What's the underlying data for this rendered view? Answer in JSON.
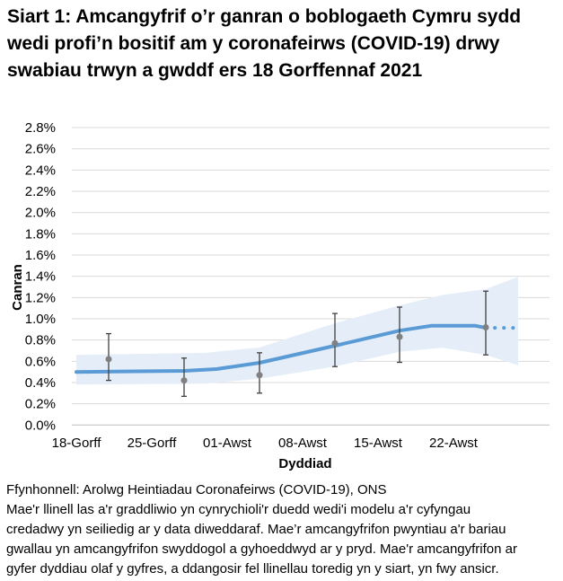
{
  "title": "Siart 1: Amcangyfrif o’r ganran o boblogaeth Cymru sydd wedi profi’n bositif am y coronafeirws (COVID-19) drwy swabiau trwyn a gwddf ers 18 Gorffennaf 2021",
  "footer": {
    "source": "Ffynhonnell: Arolwg Heintiadau Coronafeirws (COVID-19), ONS",
    "note_lines": [
      "Mae'r llinell las a'r graddliwio yn cynrychioli'r duedd wedi'i modelu a'r cyfyngau",
      "credadwy yn seiliedig ar y data diweddaraf. Mae’r amcangyfrifon pwyntiau a'r bariau",
      "gwallau yn amcangyfrifon swyddogol a gyhoeddwyd ar y pryd. Mae'r amcangyfrifon ar",
      "gyfer dyddiau olaf y gyfres, a ddangosir fel llinellau toredig yn y siart, yn fwy ansicr."
    ]
  },
  "chart_data": {
    "type": "line",
    "xlabel": "Dyddiad",
    "ylabel": "Canran",
    "ylim": [
      0,
      2.8
    ],
    "yticks": [
      "0.0%",
      "0.2%",
      "0.4%",
      "0.6%",
      "0.8%",
      "1.0%",
      "1.2%",
      "1.4%",
      "1.6%",
      "1.8%",
      "2.0%",
      "2.2%",
      "2.4%",
      "2.6%",
      "2.8%"
    ],
    "xlim": [
      "2021-07-18",
      "2021-08-28"
    ],
    "xticks": [
      {
        "date": "2021-07-18",
        "label": "18-Gorff"
      },
      {
        "date": "2021-07-25",
        "label": "25-Gorff"
      },
      {
        "date": "2021-08-01",
        "label": "01-Awst"
      },
      {
        "date": "2021-08-08",
        "label": "08-Awst"
      },
      {
        "date": "2021-08-15",
        "label": "15-Awst"
      },
      {
        "date": "2021-08-22",
        "label": "22-Awst"
      }
    ],
    "grid": true,
    "colors": {
      "trend": "#5b9bd5",
      "band": "#e5eef8",
      "points": "#808080",
      "errorbars": "#404040",
      "grid": "#d9d9d9"
    },
    "modelled_trend": [
      {
        "date": "2021-07-18",
        "value": 0.5
      },
      {
        "date": "2021-07-28",
        "value": 0.51
      },
      {
        "date": "2021-07-31",
        "value": 0.527
      },
      {
        "date": "2021-08-04",
        "value": 0.586
      },
      {
        "date": "2021-08-11",
        "value": 0.746
      },
      {
        "date": "2021-08-17",
        "value": 0.888
      },
      {
        "date": "2021-08-20",
        "value": 0.935
      },
      {
        "date": "2021-08-24",
        "value": 0.935
      },
      {
        "date": "2021-08-25",
        "value": 0.915
      }
    ],
    "modelled_trend_uncertain": [
      {
        "date": "2021-08-25",
        "value": 0.915
      },
      {
        "date": "2021-08-28",
        "value": 0.915
      }
    ],
    "credible_interval": [
      {
        "date": "2021-07-18",
        "lower": 0.38,
        "upper": 0.66
      },
      {
        "date": "2021-07-30",
        "lower": 0.39,
        "upper": 0.68
      },
      {
        "date": "2021-08-04",
        "lower": 0.436,
        "upper": 0.73
      },
      {
        "date": "2021-08-11",
        "lower": 0.55,
        "upper": 0.958
      },
      {
        "date": "2021-08-17",
        "lower": 0.69,
        "upper": 1.127
      },
      {
        "date": "2021-08-21",
        "lower": 0.727,
        "upper": 1.225
      },
      {
        "date": "2021-08-25",
        "lower": 0.66,
        "upper": 1.28
      },
      {
        "date": "2021-08-28",
        "lower": 0.563,
        "upper": 1.395
      }
    ],
    "official_estimates": [
      {
        "date": "2021-07-21",
        "value": 0.62,
        "lower": 0.42,
        "upper": 0.86
      },
      {
        "date": "2021-07-28",
        "value": 0.42,
        "lower": 0.27,
        "upper": 0.63
      },
      {
        "date": "2021-08-04",
        "value": 0.47,
        "lower": 0.3,
        "upper": 0.68
      },
      {
        "date": "2021-08-11",
        "value": 0.77,
        "lower": 0.55,
        "upper": 1.05
      },
      {
        "date": "2021-08-17",
        "value": 0.83,
        "lower": 0.59,
        "upper": 1.11
      },
      {
        "date": "2021-08-25",
        "value": 0.92,
        "lower": 0.66,
        "upper": 1.26
      }
    ]
  }
}
